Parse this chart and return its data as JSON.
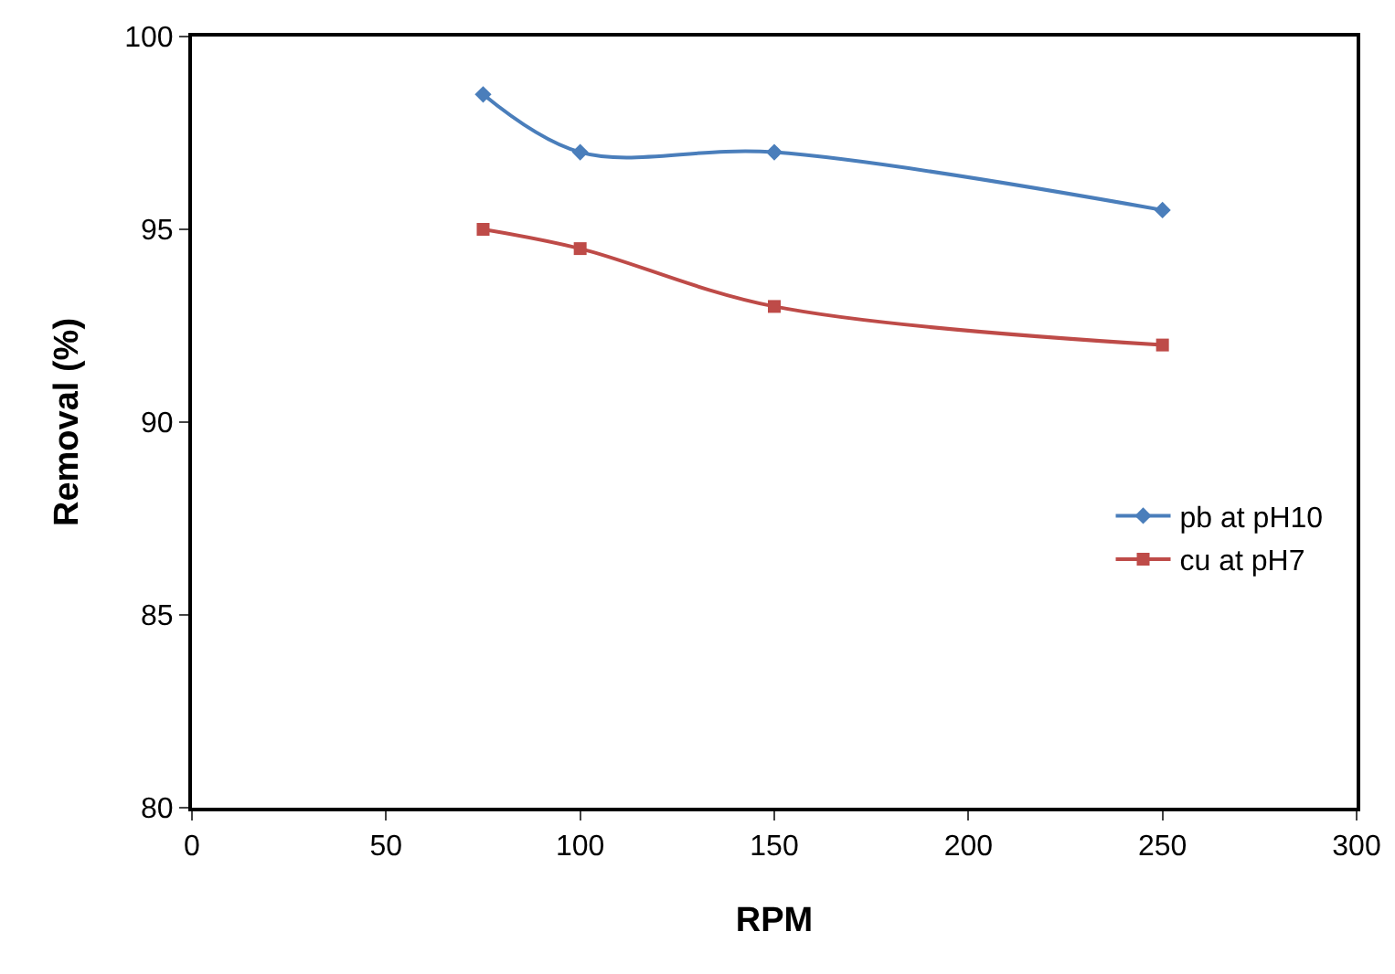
{
  "chart_data": {
    "type": "line",
    "xlabel": "RPM",
    "ylabel": "Removal (%)",
    "x": [
      75,
      100,
      150,
      250
    ],
    "series": [
      {
        "name": "pb at pH10",
        "color": "#4a7ebb",
        "values": [
          98.5,
          97,
          97,
          95.5
        ],
        "marker": "diamond"
      },
      {
        "name": "cu at pH7",
        "color": "#be4b48",
        "values": [
          95,
          94.5,
          93,
          92
        ],
        "marker": "square"
      }
    ],
    "xlim": [
      0,
      300
    ],
    "xticks": [
      0,
      50,
      100,
      150,
      200,
      250,
      300
    ],
    "ylim": [
      80,
      100
    ],
    "yticks": [
      80,
      85,
      90,
      95,
      100
    ],
    "grid": false,
    "legend": "right",
    "line_style": "solid"
  }
}
